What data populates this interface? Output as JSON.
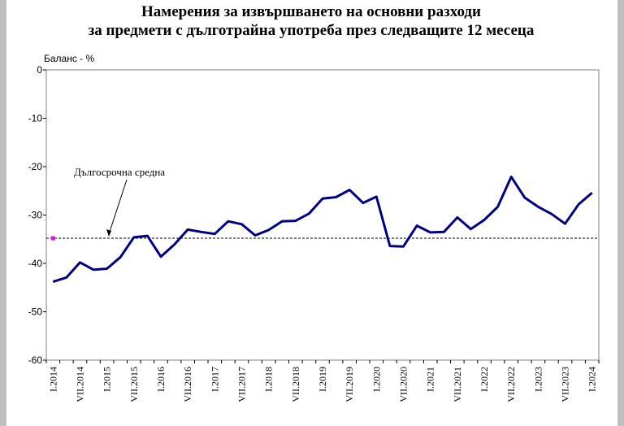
{
  "chart_data": {
    "type": "line",
    "title": [
      "Намерения за извършването на основни разходи",
      "за предмети с дълготрайна употреба през следващите 12 месеца"
    ],
    "ylabel": "Баланс - %",
    "ylim": [
      -60,
      0
    ],
    "yticks": [
      0,
      -10,
      -20,
      -30,
      -40,
      -50,
      -60
    ],
    "grid": false,
    "xtick_labels": [
      "I.2014",
      "VII.2014",
      "I.2015",
      "VII.2015",
      "I.2016",
      "VII.2016",
      "I.2017",
      "VII.2017",
      "I.2018",
      "VII.2018",
      "I.2019",
      "VII.2019",
      "I.2020",
      "VII.2020",
      "I.2021",
      "VII.2021",
      "I.2022",
      "VII.2022",
      "I.2023",
      "VII.2023",
      "I.2024"
    ],
    "series": [
      {
        "color": "#000080",
        "values": [
          -43.8,
          -42.9,
          -39.8,
          -41.3,
          -41.1,
          -38.7,
          -34.6,
          -34.3,
          -38.6,
          -36.1,
          -33.0,
          -33.5,
          -33.9,
          -31.3,
          -31.9,
          -34.2,
          -33.1,
          -31.3,
          -31.2,
          -29.7,
          -26.6,
          -26.3,
          -24.8,
          -27.5,
          -26.2,
          -36.4,
          -36.5,
          -32.2,
          -33.6,
          -33.5,
          -30.5,
          -32.9,
          -31.0,
          -28.3,
          -22.1,
          -26.4,
          -28.3,
          -29.8,
          -31.8,
          -27.8,
          -25.4
        ]
      }
    ],
    "long_term_average": {
      "label": "Дългосрочна средна",
      "value": -34.8,
      "color": "#000000",
      "marker_color": "#ff00ff"
    }
  }
}
